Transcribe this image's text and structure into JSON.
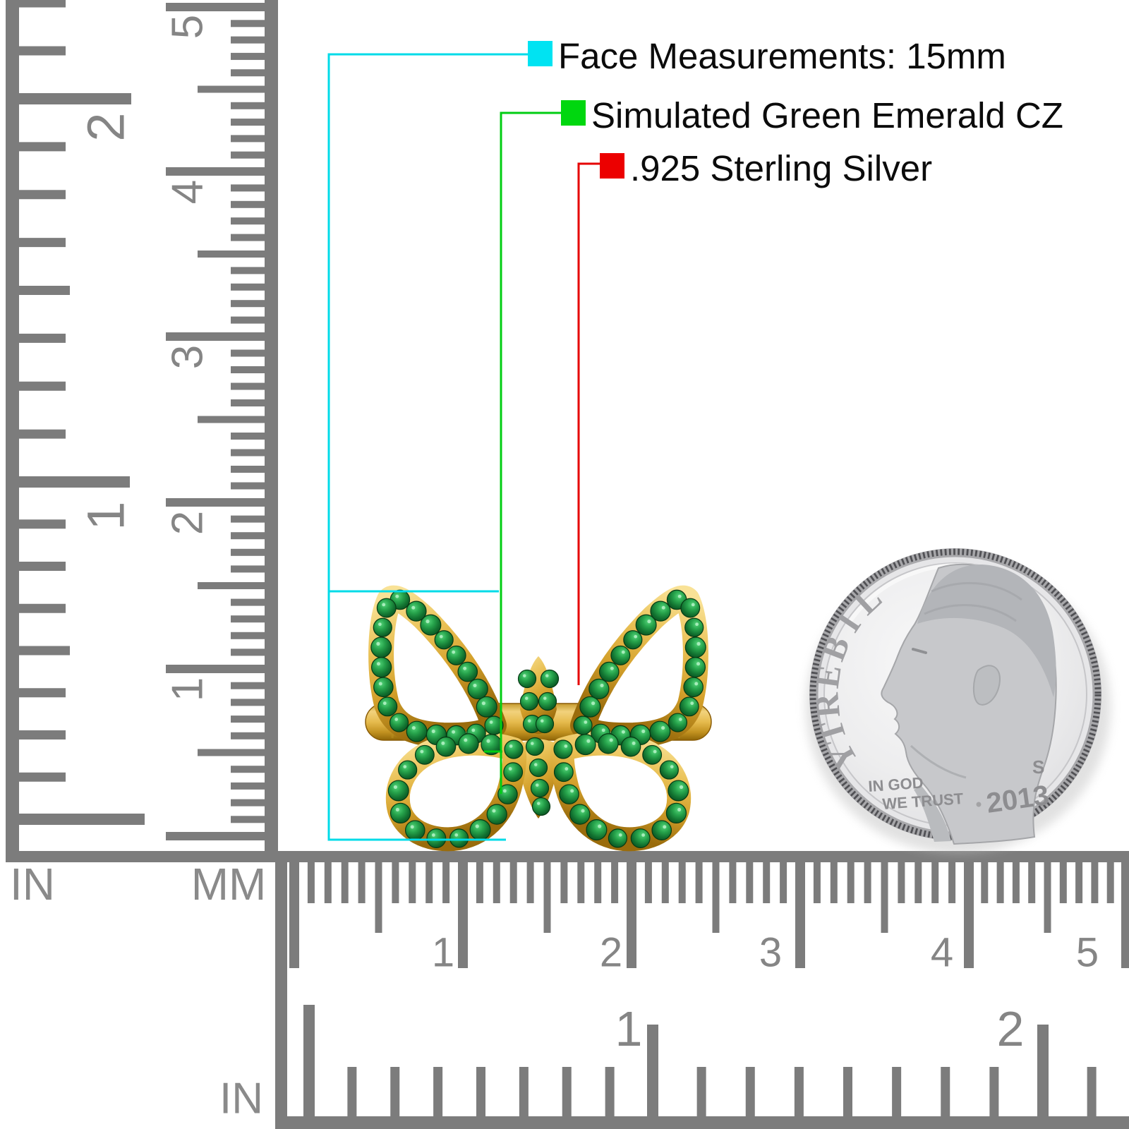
{
  "legend": {
    "items": [
      {
        "key": "face",
        "swatch_color": "#00e3f2",
        "line_color": "#00dbe8",
        "text": "Face Measurements: 15mm"
      },
      {
        "key": "stone",
        "swatch_color": "#00d70f",
        "line_color": "#00cd12",
        "text": "Simulated Green Emerald CZ"
      },
      {
        "key": "metal",
        "swatch_color": "#ec0000",
        "line_color": "#e60000",
        "text": ".925 Sterling Silver"
      }
    ]
  },
  "left_ruler": {
    "in_label": "IN",
    "mm_label": "MM",
    "inch_numbers": [
      "2",
      "1"
    ],
    "cm_numbers": [
      "5",
      "4",
      "3",
      "2",
      "1"
    ]
  },
  "bottom_ruler": {
    "in_label": "IN",
    "cm_numbers": [
      "1",
      "2",
      "3",
      "4",
      "5"
    ],
    "inch_numbers": [
      "1",
      "2"
    ]
  },
  "coin": {
    "liberty_letters": [
      "L",
      "I",
      "B",
      "E",
      "R",
      "T",
      "Y"
    ],
    "motto_line1": "IN GOD",
    "motto_line2": "WE TRUST",
    "date": "2013",
    "mint_mark": "S"
  },
  "colors": {
    "ruler_mark": "#7c7c7c",
    "gold_light": "#f7dd8a",
    "gold_mid": "#d9a92e",
    "gold_dark": "#9a6c0c",
    "stone_bright": "#2fa04a",
    "stone_dark": "#0a4a1d",
    "coin_face": "#ededee",
    "coin_detail": "#b3b5b9"
  }
}
